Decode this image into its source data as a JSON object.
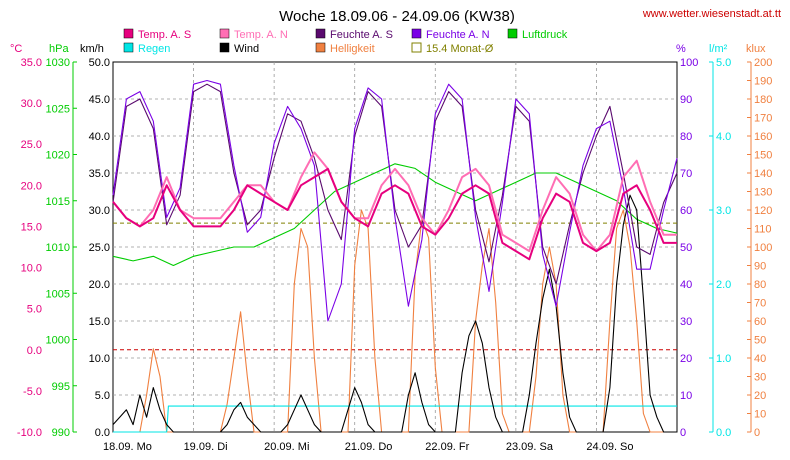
{
  "title": "Woche 18.09.06 - 24.09.06 (KW38)",
  "url": "www.wetter.wiesenstadt.at.tt",
  "units": {
    "temp": "°C",
    "press": "hPa",
    "wind": "km/h",
    "hum": "%",
    "rain": "l/m²",
    "light": "klux"
  },
  "legend": [
    {
      "label": "Temp. A. S",
      "color": "#e6007e",
      "type": "box"
    },
    {
      "label": "Temp. A. N",
      "color": "#ff6eb4",
      "type": "box"
    },
    {
      "label": "Feuchte A. S",
      "color": "#5a0a6e",
      "type": "box"
    },
    {
      "label": "Feuchte A. N",
      "color": "#7a00e6",
      "type": "box"
    },
    {
      "label": "Luftdruck",
      "color": "#00cc00",
      "type": "box"
    },
    {
      "label": "Regen",
      "color": "#00e5e5",
      "type": "box"
    },
    {
      "label": "Wind",
      "color": "#000000",
      "type": "box"
    },
    {
      "label": "Helligkeit",
      "color": "#f08040",
      "type": "box"
    },
    {
      "label": "15.4 Monat-Ø",
      "color": "#808000",
      "type": "hollow"
    }
  ],
  "chart_data": {
    "type": "line",
    "title": "Woche 18.09.06 - 24.09.06 (KW38)",
    "x_labels": [
      "18.09. Mo",
      "19.09. Di",
      "20.09. Mi",
      "21.09. Do",
      "22.09. Fr",
      "23.09. Sa",
      "24.09. So"
    ],
    "x_range_hours": [
      0,
      168
    ],
    "axes": {
      "temp": {
        "unit": "°C",
        "min": -10,
        "max": 35,
        "ticks": [
          -10,
          -5,
          0,
          5,
          10,
          15,
          20,
          25,
          30,
          35
        ],
        "labels": [
          "-10.0",
          "-5.0",
          "0.0",
          "5.0",
          "10.0",
          "15.0",
          "20.0",
          "25.0",
          "30.0",
          "35.0"
        ],
        "color": "#e6007e"
      },
      "press": {
        "unit": "hPa",
        "min": 990,
        "max": 1030,
        "ticks": [
          990,
          995,
          1000,
          1005,
          1010,
          1015,
          1020,
          1025,
          1030
        ],
        "color": "#00cc00"
      },
      "wind": {
        "unit": "km/h",
        "min": 0,
        "max": 50,
        "ticks": [
          0,
          5,
          10,
          15,
          20,
          25,
          30,
          35,
          40,
          45,
          50
        ],
        "labels": [
          "0.0",
          "5.0",
          "10.0",
          "15.0",
          "20.0",
          "25.0",
          "30.0",
          "35.0",
          "40.0",
          "45.0",
          "50.0"
        ],
        "color": "#000000"
      },
      "hum": {
        "unit": "%",
        "min": 0,
        "max": 100,
        "ticks": [
          0,
          10,
          20,
          30,
          40,
          50,
          60,
          70,
          80,
          90,
          100
        ],
        "color": "#7a00e6"
      },
      "rain": {
        "unit": "l/m²",
        "min": 0,
        "max": 5,
        "ticks": [
          0,
          1,
          2,
          3,
          4,
          5
        ],
        "labels": [
          "0.0",
          "1.0",
          "2.0",
          "3.0",
          "4.0",
          "5.0"
        ],
        "color": "#00e5e5"
      },
      "light": {
        "unit": "klux",
        "min": 0,
        "max": 200,
        "ticks": [
          0,
          10,
          20,
          30,
          40,
          50,
          60,
          70,
          80,
          90,
          100,
          110,
          120,
          130,
          140,
          150,
          160,
          170,
          180,
          190,
          200
        ],
        "color": "#f08040"
      }
    },
    "monthly_avg_temp": 15.4,
    "series": [
      {
        "name": "Temp. A. S",
        "axis": "temp",
        "color": "#e6007e",
        "x": [
          0,
          4,
          8,
          12,
          16,
          20,
          24,
          28,
          32,
          36,
          40,
          44,
          48,
          52,
          56,
          60,
          64,
          68,
          72,
          76,
          80,
          84,
          88,
          92,
          96,
          100,
          104,
          108,
          112,
          116,
          120,
          124,
          128,
          132,
          136,
          140,
          144,
          148,
          152,
          156,
          160,
          164,
          168
        ],
        "y": [
          18,
          16,
          15,
          16,
          20,
          17,
          15,
          15,
          15,
          17,
          20,
          19,
          18,
          17,
          20,
          21,
          22,
          18,
          16,
          15,
          19,
          20,
          19,
          15,
          14,
          16,
          19,
          20,
          19,
          13,
          12,
          11,
          16,
          19,
          18,
          13,
          12,
          13,
          19,
          20,
          17,
          13,
          13
        ]
      },
      {
        "name": "Temp. A. N",
        "axis": "temp",
        "color": "#ff6eb4",
        "x": [
          0,
          4,
          8,
          12,
          16,
          20,
          24,
          28,
          32,
          36,
          40,
          44,
          48,
          52,
          56,
          60,
          64,
          68,
          72,
          76,
          80,
          84,
          88,
          92,
          96,
          100,
          104,
          108,
          112,
          116,
          120,
          124,
          128,
          132,
          136,
          140,
          144,
          148,
          152,
          156,
          160,
          164,
          168
        ],
        "y": [
          18,
          16,
          15,
          17,
          21,
          17,
          16,
          16,
          16,
          18,
          20,
          20,
          18,
          17,
          21,
          24,
          22,
          18,
          16,
          16,
          20,
          22,
          20,
          16,
          14,
          17,
          21,
          22,
          20,
          14,
          13,
          12,
          17,
          21,
          19,
          14,
          12,
          14,
          21,
          23,
          18,
          14,
          14
        ]
      },
      {
        "name": "Feuchte A. S",
        "axis": "hum",
        "color": "#5a0a6e",
        "x": [
          0,
          4,
          8,
          12,
          16,
          20,
          24,
          28,
          32,
          36,
          40,
          44,
          48,
          52,
          56,
          60,
          64,
          68,
          72,
          76,
          80,
          84,
          88,
          92,
          96,
          100,
          104,
          108,
          112,
          116,
          120,
          124,
          128,
          132,
          136,
          140,
          144,
          148,
          152,
          156,
          160,
          164,
          168
        ],
        "y": [
          62,
          88,
          90,
          82,
          56,
          64,
          92,
          94,
          92,
          70,
          56,
          60,
          74,
          86,
          84,
          74,
          60,
          52,
          80,
          92,
          88,
          60,
          50,
          56,
          84,
          92,
          88,
          60,
          46,
          64,
          88,
          84,
          50,
          40,
          56,
          70,
          80,
          88,
          70,
          50,
          48,
          62,
          70
        ]
      },
      {
        "name": "Feuchte A. N",
        "axis": "hum",
        "color": "#7a00e6",
        "x": [
          0,
          4,
          8,
          12,
          16,
          20,
          24,
          28,
          32,
          36,
          40,
          44,
          48,
          52,
          56,
          60,
          64,
          68,
          72,
          76,
          80,
          84,
          88,
          92,
          96,
          100,
          104,
          108,
          112,
          116,
          120,
          124,
          128,
          132,
          136,
          140,
          144,
          148,
          152,
          156,
          160,
          164,
          168
        ],
        "y": [
          64,
          90,
          92,
          84,
          58,
          66,
          94,
          95,
          94,
          72,
          54,
          58,
          78,
          88,
          82,
          72,
          30,
          40,
          82,
          93,
          90,
          58,
          34,
          52,
          86,
          94,
          90,
          58,
          38,
          62,
          90,
          86,
          48,
          34,
          54,
          72,
          82,
          84,
          66,
          44,
          44,
          60,
          74
        ]
      },
      {
        "name": "Luftdruck",
        "axis": "press",
        "color": "#00cc00",
        "x": [
          0,
          6,
          12,
          18,
          24,
          30,
          36,
          42,
          48,
          54,
          60,
          66,
          72,
          78,
          84,
          90,
          96,
          102,
          108,
          114,
          120,
          126,
          132,
          138,
          144,
          150,
          156,
          162,
          168
        ],
        "y": [
          1009,
          1008.5,
          1009,
          1008,
          1009,
          1009.5,
          1010,
          1010,
          1011,
          1012,
          1014,
          1016,
          1017,
          1018,
          1019,
          1018.5,
          1017,
          1016,
          1015,
          1016,
          1017,
          1018,
          1018,
          1017,
          1016,
          1015,
          1013,
          1012,
          1011.5
        ]
      },
      {
        "name": "Regen",
        "axis": "rain",
        "color": "#00e5e5",
        "x": [
          0,
          16,
          16.5,
          60,
          120,
          168
        ],
        "y": [
          0,
          0,
          0.35,
          0.35,
          0.35,
          0.35
        ]
      },
      {
        "name": "Wind",
        "axis": "wind",
        "color": "#000000",
        "x": [
          0,
          2,
          4,
          6,
          8,
          10,
          12,
          14,
          16,
          18,
          20,
          22,
          24,
          26,
          28,
          30,
          32,
          34,
          36,
          38,
          40,
          42,
          44,
          46,
          48,
          50,
          52,
          54,
          56,
          58,
          60,
          62,
          64,
          66,
          68,
          70,
          72,
          74,
          76,
          78,
          80,
          82,
          84,
          86,
          88,
          90,
          92,
          94,
          96,
          98,
          100,
          102,
          104,
          106,
          108,
          110,
          112,
          114,
          116,
          118,
          120,
          122,
          124,
          126,
          128,
          130,
          132,
          134,
          136,
          138,
          140,
          142,
          144,
          146,
          148,
          150,
          152,
          154,
          156,
          158,
          160,
          162,
          164,
          166,
          168
        ],
        "y": [
          1,
          2,
          3,
          1,
          5,
          2,
          6,
          3,
          1,
          0,
          0,
          0,
          0,
          0,
          0,
          0,
          0,
          1,
          3,
          4,
          2,
          1,
          0,
          0,
          0,
          0,
          1,
          3,
          5,
          3,
          1,
          0,
          0,
          0,
          0,
          3,
          6,
          4,
          1,
          0,
          0,
          0,
          0,
          0,
          5,
          8,
          4,
          1,
          0,
          0,
          0,
          0,
          8,
          13,
          15,
          12,
          6,
          2,
          0,
          0,
          0,
          0,
          5,
          12,
          18,
          22,
          17,
          8,
          2,
          0,
          0,
          0,
          0,
          0,
          6,
          20,
          28,
          32,
          30,
          18,
          5,
          2,
          0,
          0,
          0
        ]
      },
      {
        "name": "Helligkeit",
        "axis": "light",
        "color": "#f08040",
        "x": [
          0,
          2,
          4,
          6,
          8,
          10,
          12,
          14,
          16,
          18,
          20,
          22,
          24,
          26,
          28,
          30,
          32,
          34,
          36,
          38,
          40,
          42,
          44,
          46,
          48,
          50,
          52,
          54,
          56,
          58,
          60,
          62,
          64,
          66,
          68,
          70,
          72,
          74,
          76,
          78,
          80,
          82,
          84,
          86,
          88,
          90,
          92,
          94,
          96,
          98,
          100,
          102,
          104,
          106,
          108,
          110,
          112,
          114,
          116,
          118,
          120,
          122,
          124,
          126,
          128,
          130,
          132,
          134,
          136,
          138,
          140,
          142,
          144,
          146,
          148,
          150,
          152,
          154,
          156,
          158,
          160,
          162,
          164,
          166,
          168
        ],
        "y": [
          0,
          0,
          0,
          0,
          0,
          20,
          45,
          30,
          0,
          0,
          0,
          0,
          0,
          0,
          0,
          0,
          0,
          15,
          40,
          65,
          30,
          0,
          0,
          0,
          0,
          0,
          0,
          80,
          110,
          100,
          40,
          0,
          0,
          0,
          0,
          0,
          90,
          120,
          110,
          40,
          0,
          0,
          0,
          0,
          0,
          85,
          115,
          105,
          35,
          0,
          0,
          0,
          0,
          0,
          60,
          90,
          110,
          70,
          10,
          0,
          0,
          0,
          0,
          30,
          80,
          100,
          80,
          20,
          0,
          0,
          0,
          0,
          0,
          0,
          60,
          110,
          120,
          100,
          60,
          10,
          0,
          0,
          0,
          0,
          0
        ]
      }
    ],
    "reference_lines": [
      {
        "axis": "temp",
        "value": 0,
        "color": "#cc0000",
        "style": "dashed"
      },
      {
        "axis": "temp",
        "value": 15.4,
        "color": "#808000",
        "style": "dashed"
      }
    ],
    "grid": true,
    "legend_position": "top"
  }
}
